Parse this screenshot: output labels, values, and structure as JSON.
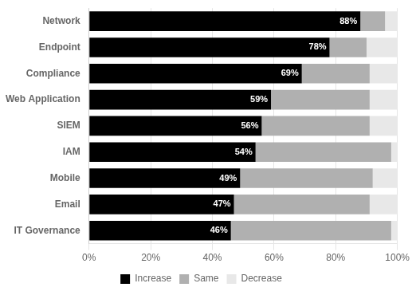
{
  "chart_data": {
    "type": "bar",
    "orientation": "horizontal",
    "stacked": true,
    "categories": [
      "Network",
      "Endpoint",
      "Compliance",
      "Web Application",
      "SIEM",
      "IAM",
      "Mobile",
      "Email",
      "IT Governance"
    ],
    "series": [
      {
        "name": "Increase",
        "color": "#000000",
        "values": [
          88,
          78,
          69,
          59,
          56,
          54,
          49,
          47,
          46
        ],
        "value_labels": [
          "88%",
          "78%",
          "69%",
          "59%",
          "56%",
          "54%",
          "49%",
          "47%",
          "46%"
        ]
      },
      {
        "name": "Same",
        "color": "#b0b0b0",
        "values": [
          8,
          12,
          22,
          32,
          35,
          44,
          43,
          44,
          52
        ]
      },
      {
        "name": "Decrease",
        "color": "#e8e8e8",
        "values": [
          4,
          10,
          9,
          9,
          9,
          2,
          8,
          9,
          2
        ]
      }
    ],
    "xlim": [
      0,
      100
    ],
    "xticks": [
      {
        "value": 0,
        "label": "0%"
      },
      {
        "value": 20,
        "label": "20%"
      },
      {
        "value": 40,
        "label": "40%"
      },
      {
        "value": 60,
        "label": "60%"
      },
      {
        "value": 80,
        "label": "80%"
      },
      {
        "value": 100,
        "label": "100%"
      }
    ],
    "grid": true,
    "legend": "bottom",
    "data_labels": true
  }
}
